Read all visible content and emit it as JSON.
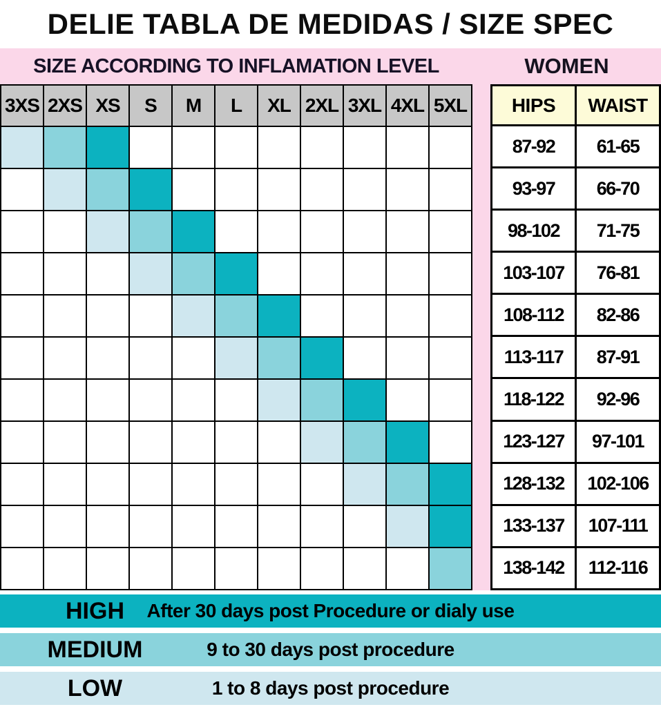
{
  "title": "DELIE TABLA DE MEDIDAS / SIZE SPEC",
  "banners": {
    "left": "SIZE ACCORDING TO INFLAMATION LEVEL",
    "right": "WOMEN"
  },
  "chart_data": [
    {
      "type": "heatmap",
      "title": "SIZE ACCORDING TO INFLAMATION LEVEL",
      "columns": [
        "3XS",
        "2XS",
        "XS",
        "S",
        "M",
        "L",
        "XL",
        "2XL",
        "3XL",
        "4XL",
        "5XL"
      ],
      "levels": [
        "none",
        "low",
        "medium",
        "high"
      ],
      "matrix": [
        [
          1,
          2,
          3,
          0,
          0,
          0,
          0,
          0,
          0,
          0,
          0
        ],
        [
          0,
          1,
          2,
          3,
          0,
          0,
          0,
          0,
          0,
          0,
          0
        ],
        [
          0,
          0,
          1,
          2,
          3,
          0,
          0,
          0,
          0,
          0,
          0
        ],
        [
          0,
          0,
          0,
          1,
          2,
          3,
          0,
          0,
          0,
          0,
          0
        ],
        [
          0,
          0,
          0,
          0,
          1,
          2,
          3,
          0,
          0,
          0,
          0
        ],
        [
          0,
          0,
          0,
          0,
          0,
          1,
          2,
          3,
          0,
          0,
          0
        ],
        [
          0,
          0,
          0,
          0,
          0,
          0,
          1,
          2,
          3,
          0,
          0
        ],
        [
          0,
          0,
          0,
          0,
          0,
          0,
          0,
          1,
          2,
          3,
          0
        ],
        [
          0,
          0,
          0,
          0,
          0,
          0,
          0,
          0,
          1,
          2,
          3
        ],
        [
          0,
          0,
          0,
          0,
          0,
          0,
          0,
          0,
          0,
          1,
          3
        ],
        [
          0,
          0,
          0,
          0,
          0,
          0,
          0,
          0,
          0,
          0,
          2
        ]
      ]
    },
    {
      "type": "table",
      "title": "WOMEN",
      "columns": [
        "HIPS",
        "WAIST"
      ],
      "rows": [
        [
          "87-92",
          "61-65"
        ],
        [
          "93-97",
          "66-70"
        ],
        [
          "98-102",
          "71-75"
        ],
        [
          "103-107",
          "76-81"
        ],
        [
          "108-112",
          "82-86"
        ],
        [
          "113-117",
          "87-91"
        ],
        [
          "118-122",
          "92-96"
        ],
        [
          "123-127",
          "97-101"
        ],
        [
          "128-132",
          "102-106"
        ],
        [
          "133-137",
          "107-111"
        ],
        [
          "138-142",
          "112-116"
        ]
      ]
    }
  ],
  "legend": [
    {
      "level": "high",
      "label": "HIGH",
      "description": "After 30 days post Procedure or dialy use"
    },
    {
      "level": "medium",
      "label": "MEDIUM",
      "description": "9 to 30 days post procedure"
    },
    {
      "level": "low",
      "label": "LOW",
      "description": "1 to 8 days post procedure"
    }
  ],
  "colors": {
    "high": "#0cb2c0",
    "medium": "#8ad3dc",
    "low": "#cfe7ef",
    "pink": "#fbd7e9",
    "header_gray": "#c7c7c7",
    "header_yellow": "#fdfbd8",
    "border": "#000000",
    "text": "#111111"
  }
}
